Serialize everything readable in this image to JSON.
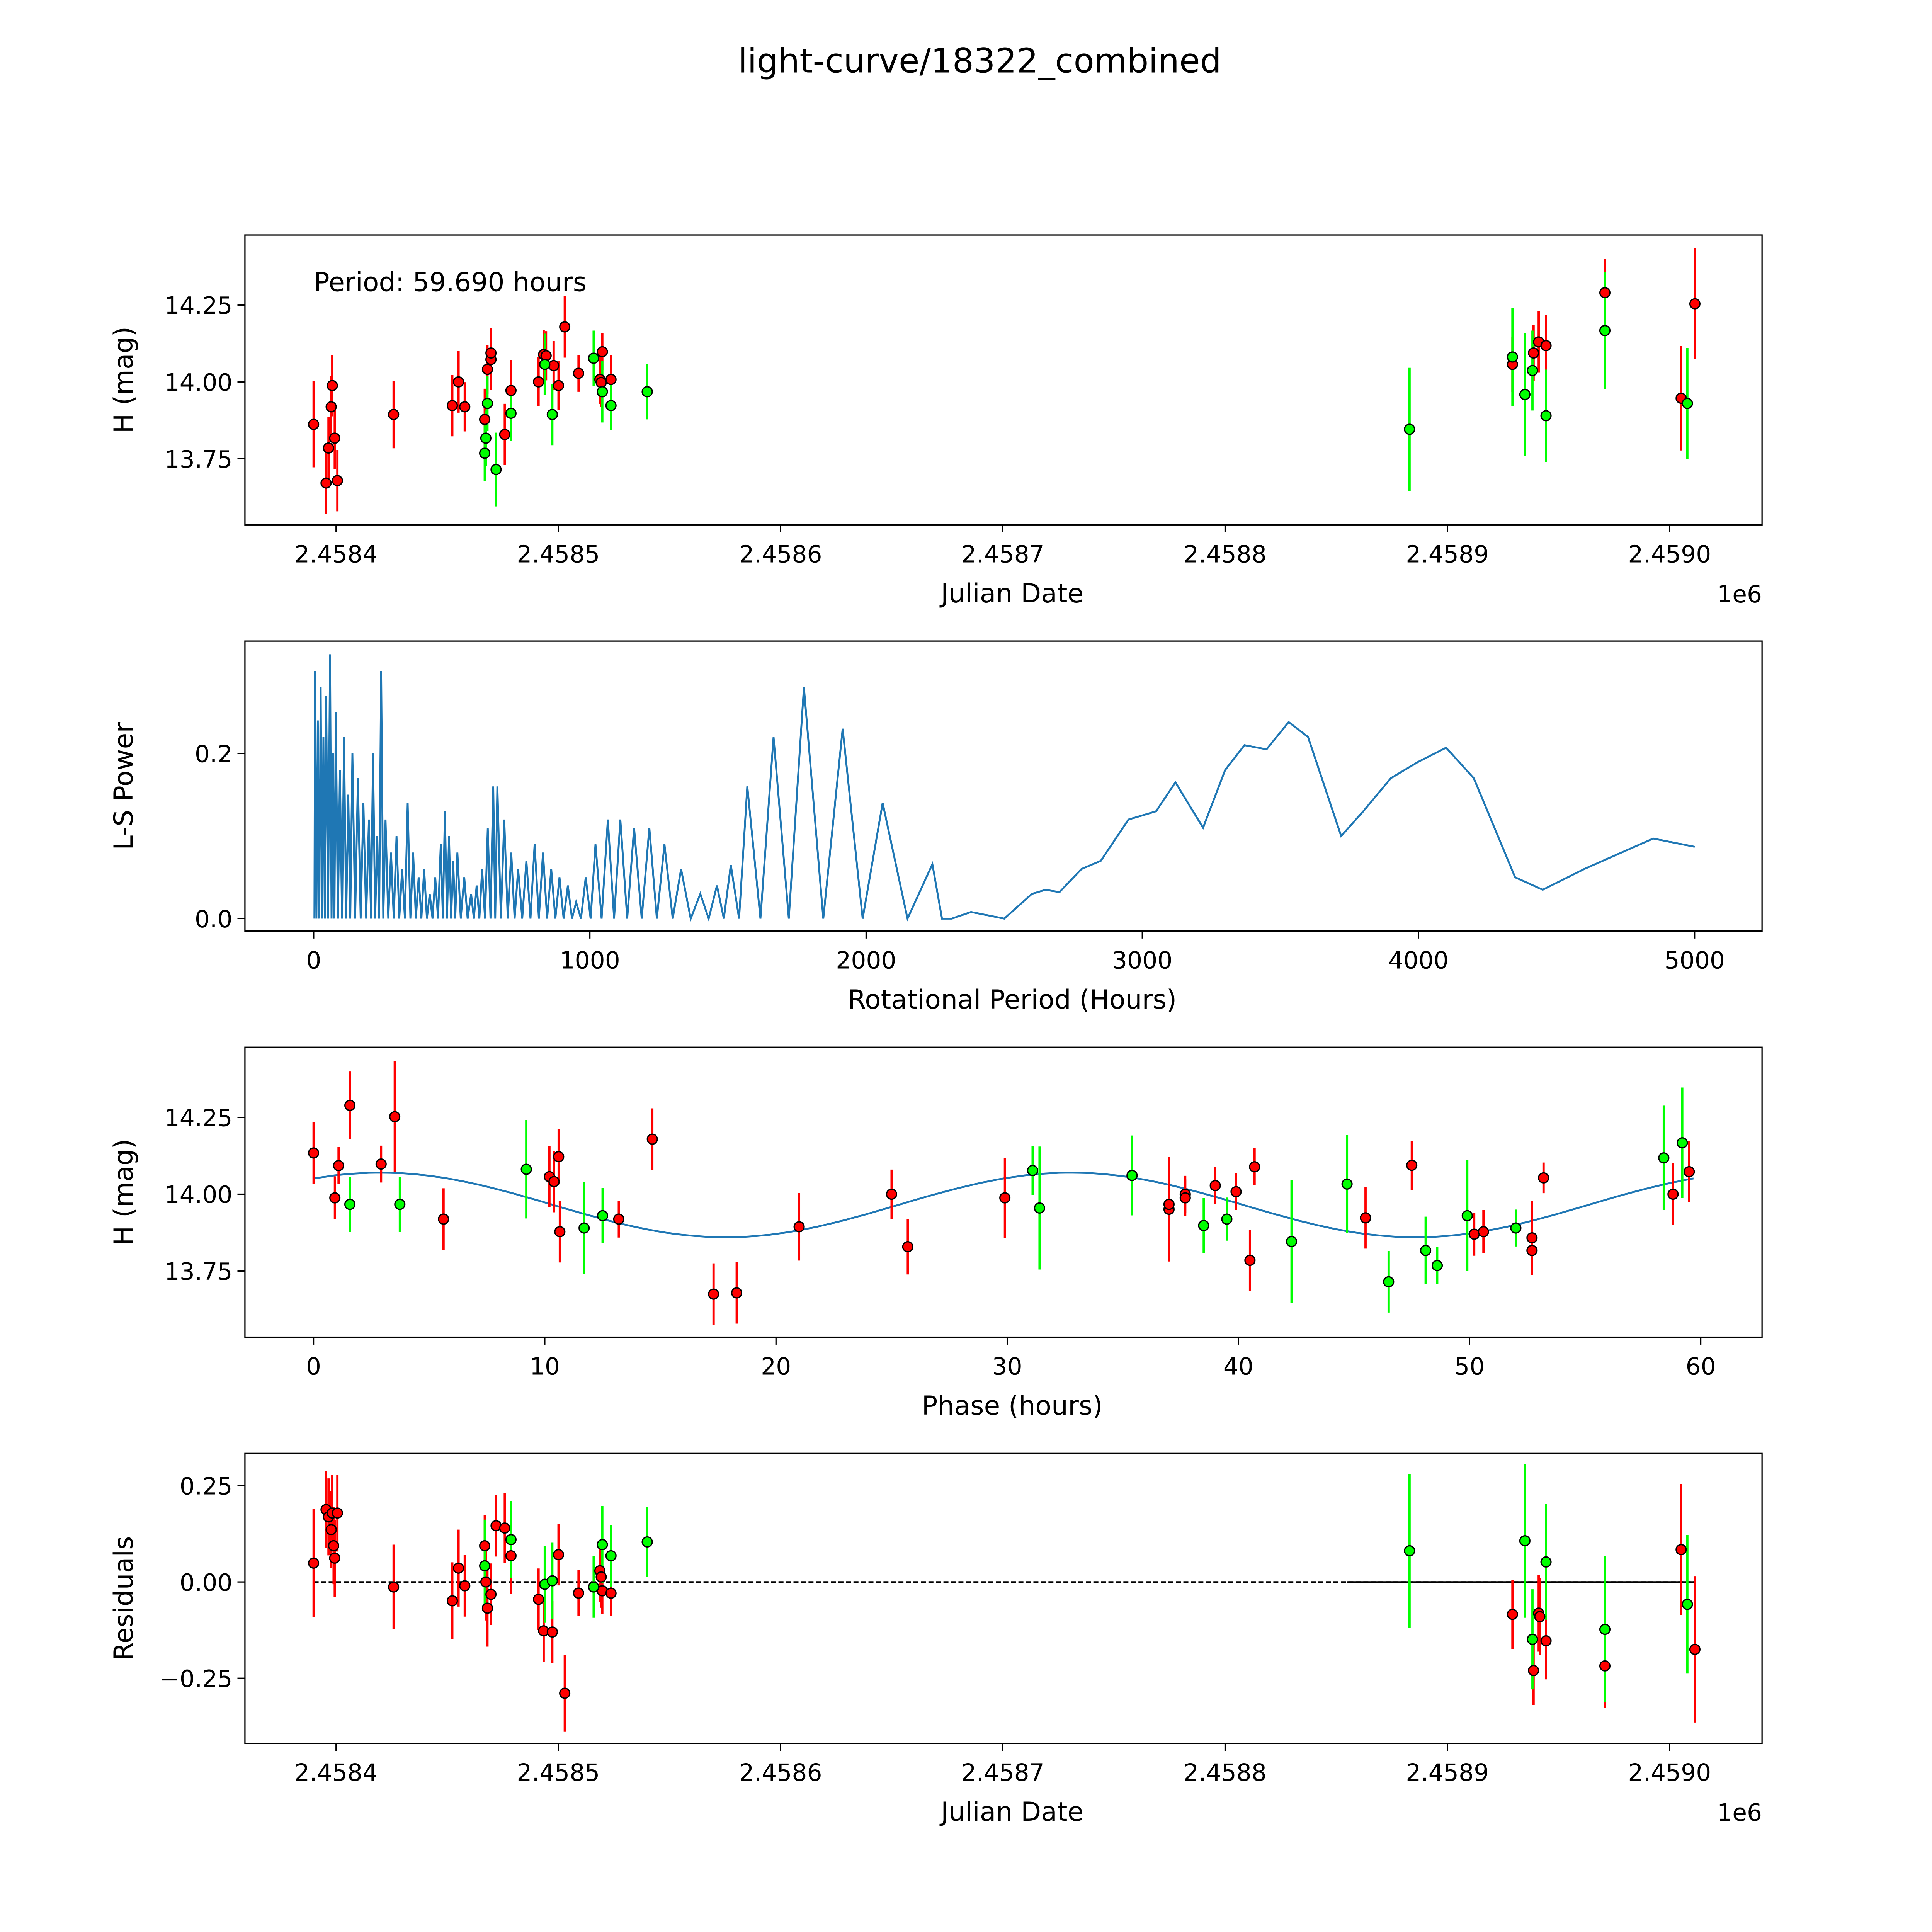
{
  "title": "light-curve/18322_combined",
  "colors": {
    "red": "#ff0000",
    "green": "#00ff00",
    "curve": "#1f77b4",
    "edge": "#000000"
  },
  "chart_data": [
    {
      "id": "lightcurve",
      "type": "scatter",
      "annotation": "Period: 59.690 hours",
      "xlabel": "Julian Date",
      "ylabel": "H (mag)",
      "offset_label": "1e6",
      "xlim": [
        2458359,
        2459041.6
      ],
      "ylim": [
        13.535,
        14.478
      ],
      "xticks": [
        2458400,
        2458500,
        2458600,
        2458700,
        2458800,
        2458900,
        2459000
      ],
      "xtick_labels": [
        "2.4584",
        "2.4585",
        "2.4586",
        "2.4587",
        "2.4588",
        "2.4589",
        "2.4590"
      ],
      "yticks": [
        13.75,
        14.0,
        14.25
      ],
      "ytick_labels": [
        "13.75",
        "14.00",
        "14.25"
      ],
      "red": [
        [
          2458389.9,
          13.862,
          0.14
        ],
        [
          2458395.5,
          13.671,
          0.1
        ],
        [
          2458396.6,
          13.785,
          0.1
        ],
        [
          2458397.8,
          13.919,
          0.1
        ],
        [
          2458398.3,
          13.988,
          0.1
        ],
        [
          2458399.4,
          13.817,
          0.1
        ],
        [
          2458400.6,
          13.679,
          0.1
        ],
        [
          2458425.9,
          13.894,
          0.11
        ],
        [
          2458452.3,
          13.923,
          0.1
        ],
        [
          2458455.1,
          14.0,
          0.1
        ],
        [
          2458457.9,
          13.919,
          0.08
        ],
        [
          2458466.9,
          13.878,
          0.1
        ],
        [
          2458468.1,
          14.041,
          0.08
        ],
        [
          2458469.7,
          14.073,
          0.1
        ],
        [
          2458469.7,
          14.094,
          0.08
        ],
        [
          2458475.9,
          13.829,
          0.1
        ],
        [
          2458478.7,
          13.972,
          0.1
        ],
        [
          2458491.1,
          14.0,
          0.08
        ],
        [
          2458493.4,
          14.089,
          0.08
        ],
        [
          2458494.5,
          14.085,
          0.08
        ],
        [
          2458497.9,
          14.053,
          0.08
        ],
        [
          2458500.1,
          13.988,
          0.08
        ],
        [
          2458502.9,
          14.179,
          0.1
        ],
        [
          2458509.1,
          14.028,
          0.06
        ],
        [
          2458518.7,
          14.008,
          0.08
        ],
        [
          2458519.3,
          13.998,
          0.08
        ],
        [
          2458519.8,
          14.098,
          0.06
        ],
        [
          2458523.7,
          14.008,
          0.08
        ],
        [
          2458929.3,
          14.057,
          0.09
        ],
        [
          2458938.8,
          14.094,
          0.09
        ],
        [
          2458941.1,
          14.13,
          0.1
        ],
        [
          2458944.4,
          14.118,
          0.1
        ],
        [
          2458970.9,
          14.29,
          0.11
        ],
        [
          2459005.2,
          13.947,
          0.17
        ],
        [
          2459011.4,
          14.254,
          0.18
        ]
      ],
      "green": [
        [
          2458466.9,
          13.768,
          0.09
        ],
        [
          2458467.4,
          13.817,
          0.09
        ],
        [
          2458468.1,
          13.93,
          0.09
        ],
        [
          2458472.0,
          13.715,
          0.12
        ],
        [
          2458478.7,
          13.898,
          0.09
        ],
        [
          2458493.9,
          14.057,
          0.1
        ],
        [
          2458497.3,
          13.894,
          0.1
        ],
        [
          2458515.9,
          14.077,
          0.09
        ],
        [
          2458519.8,
          13.968,
          0.1
        ],
        [
          2458523.7,
          13.923,
          0.08
        ],
        [
          2458540.0,
          13.968,
          0.09
        ],
        [
          2458883.0,
          13.846,
          0.2
        ],
        [
          2458929.3,
          14.081,
          0.16
        ],
        [
          2458934.9,
          13.959,
          0.2
        ],
        [
          2458938.3,
          14.037,
          0.13
        ],
        [
          2458944.4,
          13.89,
          0.15
        ],
        [
          2458970.9,
          14.167,
          0.19
        ],
        [
          2459008.0,
          13.93,
          0.18
        ]
      ]
    },
    {
      "id": "periodogram",
      "type": "line",
      "xlabel": "Rotational Period (Hours)",
      "ylabel": "L-S Power",
      "xlim": [
        -249,
        5244
      ],
      "ylim": [
        -0.015,
        0.336
      ],
      "xticks": [
        0,
        1000,
        2000,
        3000,
        4000,
        5000
      ],
      "xtick_labels": [
        "0",
        "1000",
        "2000",
        "3000",
        "4000",
        "5000"
      ],
      "yticks": [
        0.0,
        0.2
      ],
      "ytick_labels": [
        "0.0",
        "0.2"
      ],
      "oscillating_peaks": [
        [
          5,
          0.3
        ],
        [
          15,
          0.24
        ],
        [
          25,
          0.28
        ],
        [
          35,
          0.22
        ],
        [
          45,
          0.27
        ],
        [
          59,
          0.32
        ],
        [
          70,
          0.2
        ],
        [
          80,
          0.25
        ],
        [
          95,
          0.18
        ],
        [
          110,
          0.22
        ],
        [
          125,
          0.15
        ],
        [
          140,
          0.2
        ],
        [
          160,
          0.17
        ],
        [
          180,
          0.14
        ],
        [
          200,
          0.12
        ],
        [
          215,
          0.2
        ],
        [
          230,
          0.1
        ],
        [
          244,
          0.3
        ],
        [
          260,
          0.12
        ],
        [
          280,
          0.08
        ],
        [
          300,
          0.1
        ],
        [
          320,
          0.06
        ],
        [
          340,
          0.14
        ],
        [
          360,
          0.08
        ],
        [
          380,
          0.05
        ],
        [
          400,
          0.06
        ],
        [
          420,
          0.03
        ],
        [
          440,
          0.05
        ],
        [
          460,
          0.09
        ],
        [
          475,
          0.13
        ],
        [
          490,
          0.1
        ],
        [
          505,
          0.07
        ],
        [
          520,
          0.08
        ],
        [
          545,
          0.05
        ],
        [
          570,
          0.03
        ],
        [
          590,
          0.04
        ],
        [
          610,
          0.06
        ],
        [
          630,
          0.11
        ],
        [
          650,
          0.16
        ],
        [
          665,
          0.16
        ],
        [
          690,
          0.12
        ],
        [
          715,
          0.08
        ],
        [
          740,
          0.06
        ],
        [
          770,
          0.07
        ],
        [
          800,
          0.09
        ],
        [
          830,
          0.08
        ],
        [
          860,
          0.06
        ],
        [
          890,
          0.05
        ],
        [
          920,
          0.04
        ],
        [
          950,
          0.02
        ],
        [
          985,
          0.05
        ],
        [
          1020,
          0.09
        ],
        [
          1065,
          0.12
        ],
        [
          1110,
          0.12
        ],
        [
          1160,
          0.11
        ],
        [
          1215,
          0.11
        ],
        [
          1270,
          0.09
        ],
        [
          1330,
          0.06
        ],
        [
          1400,
          0.03
        ],
        [
          1460,
          0.04
        ],
        [
          1510,
          0.065
        ],
        [
          1570,
          0.16
        ],
        [
          1665,
          0.22
        ],
        [
          1775,
          0.28
        ],
        [
          1915,
          0.23
        ],
        [
          2060,
          0.14
        ],
        [
          2240,
          0.066
        ]
      ],
      "smooth_tail": [
        [
          2310,
          0.0
        ],
        [
          2380,
          0.008
        ],
        [
          2440,
          0.004
        ],
        [
          2500,
          0.0
        ],
        [
          2600,
          0.03
        ],
        [
          2650,
          0.035
        ],
        [
          2700,
          0.032
        ],
        [
          2780,
          0.06
        ],
        [
          2850,
          0.07
        ],
        [
          2950,
          0.12
        ],
        [
          3000,
          0.125
        ],
        [
          3050,
          0.13
        ],
        [
          3120,
          0.165
        ],
        [
          3220,
          0.11
        ],
        [
          3300,
          0.18
        ],
        [
          3370,
          0.21
        ],
        [
          3450,
          0.205
        ],
        [
          3530,
          0.238
        ],
        [
          3600,
          0.22
        ],
        [
          3720,
          0.1
        ],
        [
          3800,
          0.13
        ],
        [
          3900,
          0.17
        ],
        [
          4000,
          0.19
        ],
        [
          4100,
          0.207
        ],
        [
          4200,
          0.17
        ],
        [
          4350,
          0.05
        ],
        [
          4450,
          0.035
        ],
        [
          4600,
          0.06
        ],
        [
          4850,
          0.097
        ],
        [
          5000,
          0.087
        ]
      ]
    },
    {
      "id": "phased",
      "type": "scatter",
      "xlabel": "Phase (hours)",
      "ylabel": "H (mag)",
      "xlim": [
        -2.97,
        62.65
      ],
      "ylim": [
        13.535,
        14.478
      ],
      "xticks": [
        0,
        10,
        20,
        30,
        40,
        50,
        60
      ],
      "xtick_labels": [
        "0",
        "10",
        "20",
        "30",
        "40",
        "50",
        "60"
      ],
      "yticks": [
        13.75,
        14.0,
        14.25
      ],
      "ytick_labels": [
        "13.75",
        "14.00",
        "14.25"
      ],
      "model": {
        "mean": 13.965,
        "amplitude": 0.105,
        "cycles_per_period": 2,
        "phase_of_max": 2.9,
        "period": 59.69
      },
      "red": [
        [
          0,
          14.134,
          0.1
        ],
        [
          0.92,
          13.988,
          0.07
        ],
        [
          1.08,
          14.093,
          0.06
        ],
        [
          1.57,
          14.289,
          0.11
        ],
        [
          2.92,
          14.098,
          0.06
        ],
        [
          3.51,
          14.252,
          0.18
        ],
        [
          5.62,
          13.919,
          0.1
        ],
        [
          10.2,
          14.057,
          0.1
        ],
        [
          10.4,
          14.041,
          0.1
        ],
        [
          10.6,
          14.122,
          0.09
        ],
        [
          10.65,
          13.878,
          0.1
        ],
        [
          13.2,
          13.919,
          0.06
        ],
        [
          14.65,
          14.179,
          0.1
        ],
        [
          17.3,
          13.675,
          0.1
        ],
        [
          18.3,
          13.679,
          0.1
        ],
        [
          21.0,
          13.894,
          0.11
        ],
        [
          25.0,
          14.0,
          0.08
        ],
        [
          25.7,
          13.829,
          0.09
        ],
        [
          29.9,
          13.988,
          0.13
        ],
        [
          37.0,
          13.951,
          0.17
        ],
        [
          37.0,
          13.967,
          0.14
        ],
        [
          37.7,
          14.0,
          0.06
        ],
        [
          37.7,
          13.988,
          0.06
        ],
        [
          39.0,
          14.028,
          0.06
        ],
        [
          39.9,
          14.008,
          0.06
        ],
        [
          40.5,
          13.785,
          0.1
        ],
        [
          40.7,
          14.089,
          0.06
        ],
        [
          45.5,
          13.923,
          0.1
        ],
        [
          47.5,
          14.094,
          0.08
        ],
        [
          50.2,
          13.87,
          0.07
        ],
        [
          50.6,
          13.878,
          0.07
        ],
        [
          52.7,
          13.858,
          0.12
        ],
        [
          52.7,
          13.817,
          0.08
        ],
        [
          53.2,
          14.053,
          0.05
        ],
        [
          58.8,
          14.0,
          0.1
        ],
        [
          59.5,
          14.073,
          0.1
        ]
      ],
      "green": [
        [
          1.57,
          13.967,
          0.09
        ],
        [
          3.73,
          13.967,
          0.09
        ],
        [
          9.2,
          14.081,
          0.16
        ],
        [
          11.7,
          13.89,
          0.15
        ],
        [
          12.5,
          13.93,
          0.09
        ],
        [
          31.1,
          14.077,
          0.08
        ],
        [
          31.4,
          13.955,
          0.2
        ],
        [
          35.4,
          14.061,
          0.13
        ],
        [
          38.5,
          13.898,
          0.09
        ],
        [
          39.5,
          13.919,
          0.07
        ],
        [
          42.3,
          13.846,
          0.2
        ],
        [
          44.7,
          14.033,
          0.16
        ],
        [
          46.5,
          13.715,
          0.1
        ],
        [
          48.1,
          13.817,
          0.11
        ],
        [
          48.6,
          13.768,
          0.06
        ],
        [
          49.9,
          13.93,
          0.18
        ],
        [
          52.0,
          13.89,
          0.06
        ],
        [
          58.4,
          14.118,
          0.17
        ],
        [
          59.2,
          14.167,
          0.18
        ]
      ]
    },
    {
      "id": "residuals",
      "type": "scatter",
      "xlabel": "Julian Date",
      "ylabel": "Residuals",
      "offset_label": "1e6",
      "xlim": [
        2458359,
        2459041.6
      ],
      "ylim": [
        -0.419,
        0.334
      ],
      "xticks": [
        2458400,
        2458500,
        2458600,
        2458700,
        2458800,
        2458900,
        2459000
      ],
      "xtick_labels": [
        "2.4584",
        "2.4585",
        "2.4586",
        "2.4587",
        "2.4588",
        "2.4589",
        "2.4590"
      ],
      "yticks": [
        -0.25,
        0.0,
        0.25
      ],
      "ytick_labels": [
        "−0.25",
        "0.00",
        "0.25"
      ],
      "zero_line": {
        "dashed_from": 2458389.9,
        "solid_from": 2458855,
        "to": 2459011.4
      },
      "red": [
        [
          2458389.9,
          0.049,
          0.14
        ],
        [
          2458395.5,
          0.188,
          0.1
        ],
        [
          2458396.6,
          0.169,
          0.1
        ],
        [
          2458397.8,
          0.136,
          0.1
        ],
        [
          2458398.3,
          0.179,
          0.1
        ],
        [
          2458398.9,
          0.094,
          0.1
        ],
        [
          2458399.4,
          0.062,
          0.1
        ],
        [
          2458400.6,
          0.179,
          0.1
        ],
        [
          2458425.9,
          -0.013,
          0.11
        ],
        [
          2458452.3,
          -0.049,
          0.1
        ],
        [
          2458455.1,
          0.036,
          0.1
        ],
        [
          2458457.9,
          -0.01,
          0.08
        ],
        [
          2458466.9,
          0.094,
          0.08
        ],
        [
          2458467.4,
          0.0,
          0.1
        ],
        [
          2458468.1,
          -0.068,
          0.1
        ],
        [
          2458469.7,
          -0.032,
          0.08
        ],
        [
          2458472.0,
          0.146,
          0.08
        ],
        [
          2458475.9,
          0.14,
          0.09
        ],
        [
          2458478.7,
          0.068,
          0.1
        ],
        [
          2458491.1,
          -0.045,
          0.08
        ],
        [
          2458493.4,
          -0.127,
          0.08
        ],
        [
          2458497.3,
          -0.13,
          0.08
        ],
        [
          2458500.1,
          0.071,
          0.08
        ],
        [
          2458502.9,
          -0.289,
          0.1
        ],
        [
          2458509.1,
          -0.029,
          0.06
        ],
        [
          2458518.7,
          0.029,
          0.08
        ],
        [
          2458519.3,
          0.013,
          0.08
        ],
        [
          2458519.8,
          -0.023,
          0.06
        ],
        [
          2458523.7,
          -0.029,
          0.06
        ],
        [
          2458929.3,
          -0.084,
          0.09
        ],
        [
          2458938.8,
          -0.23,
          0.09
        ],
        [
          2458941.1,
          -0.081,
          0.1
        ],
        [
          2458941.6,
          -0.09,
          0.1
        ],
        [
          2458944.4,
          -0.153,
          0.1
        ],
        [
          2458970.9,
          -0.218,
          0.11
        ],
        [
          2459005.2,
          0.084,
          0.17
        ],
        [
          2459011.4,
          -0.175,
          0.19
        ]
      ],
      "green": [
        [
          2458466.9,
          0.042,
          0.12
        ],
        [
          2458478.7,
          0.11,
          0.1
        ],
        [
          2458493.9,
          -0.006,
          0.1
        ],
        [
          2458497.3,
          0.003,
          0.1
        ],
        [
          2458515.9,
          -0.013,
          0.08
        ],
        [
          2458519.8,
          0.097,
          0.1
        ],
        [
          2458523.7,
          0.068,
          0.08
        ],
        [
          2458540.0,
          0.104,
          0.09
        ],
        [
          2458883.0,
          0.081,
          0.2
        ],
        [
          2458934.9,
          0.107,
          0.2
        ],
        [
          2458938.3,
          -0.149,
          0.13
        ],
        [
          2458944.4,
          0.052,
          0.15
        ],
        [
          2458970.9,
          -0.123,
          0.19
        ],
        [
          2459008.0,
          -0.058,
          0.18
        ]
      ]
    }
  ]
}
